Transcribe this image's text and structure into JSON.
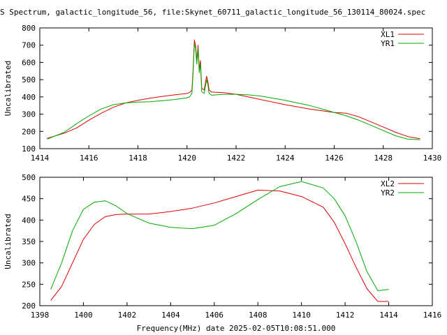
{
  "title": "S Spectrum, galactic_longitude_56, file:Skynet_60711_galactic_longitude_56_130114_80024.spec",
  "footer_label": "Frequency(MHz) date 2025-02-05T10:08:51.000",
  "chart_data": [
    {
      "type": "line",
      "ylabel": "Uncalibrated",
      "xlim": [
        1414,
        1430
      ],
      "ylim": [
        100,
        800
      ],
      "xticks": [
        1414,
        1416,
        1418,
        1420,
        1422,
        1424,
        1426,
        1428,
        1430
      ],
      "yticks": [
        100,
        200,
        300,
        400,
        500,
        600,
        700,
        800
      ],
      "grid": false,
      "legend_position": "top-right",
      "series": [
        {
          "name": "XL1",
          "color": "#dd0000",
          "x": [
            1414.3,
            1415.0,
            1415.5,
            1416.0,
            1416.5,
            1417.0,
            1417.5,
            1418.0,
            1418.5,
            1419.0,
            1419.5,
            1420.0,
            1420.1,
            1420.2,
            1420.25,
            1420.3,
            1420.35,
            1420.4,
            1420.45,
            1420.5,
            1420.55,
            1420.6,
            1420.7,
            1420.8,
            1420.85,
            1420.9,
            1421.0,
            1421.5,
            1422.0,
            1422.5,
            1423.0,
            1424.0,
            1425.0,
            1426.0,
            1426.5,
            1427.0,
            1427.5,
            1428.0,
            1428.5,
            1429.0,
            1429.5
          ],
          "y": [
            160,
            190,
            220,
            265,
            305,
            340,
            365,
            380,
            393,
            403,
            412,
            420,
            425,
            440,
            560,
            730,
            700,
            610,
            700,
            560,
            610,
            450,
            440,
            520,
            490,
            440,
            428,
            425,
            415,
            400,
            385,
            355,
            330,
            310,
            305,
            285,
            255,
            225,
            195,
            170,
            158
          ]
        },
        {
          "name": "YR1",
          "color": "#00aa00",
          "x": [
            1414.3,
            1415.0,
            1415.5,
            1416.0,
            1416.5,
            1417.0,
            1417.5,
            1418.0,
            1418.5,
            1419.0,
            1419.5,
            1420.0,
            1420.1,
            1420.2,
            1420.25,
            1420.3,
            1420.35,
            1420.4,
            1420.45,
            1420.5,
            1420.55,
            1420.6,
            1420.7,
            1420.8,
            1420.85,
            1420.9,
            1421.0,
            1421.5,
            1422.0,
            1422.5,
            1423.0,
            1424.0,
            1425.0,
            1426.0,
            1426.5,
            1427.0,
            1427.5,
            1428.0,
            1428.5,
            1429.0,
            1429.5
          ],
          "y": [
            155,
            195,
            245,
            290,
            330,
            355,
            365,
            370,
            372,
            378,
            385,
            395,
            400,
            420,
            540,
            710,
            680,
            590,
            680,
            540,
            590,
            430,
            420,
            500,
            470,
            420,
            410,
            415,
            415,
            412,
            405,
            380,
            350,
            310,
            290,
            265,
            235,
            205,
            175,
            155,
            152
          ]
        }
      ]
    },
    {
      "type": "line",
      "ylabel": "Uncalibrated",
      "xlim": [
        1398,
        1416
      ],
      "ylim": [
        200,
        500
      ],
      "xticks": [
        1398,
        1400,
        1402,
        1404,
        1406,
        1408,
        1410,
        1412,
        1414,
        1416
      ],
      "yticks": [
        200,
        250,
        300,
        350,
        400,
        450,
        500
      ],
      "grid": false,
      "legend_position": "top-right",
      "series": [
        {
          "name": "XL2",
          "color": "#dd0000",
          "x": [
            1398.5,
            1399.0,
            1399.5,
            1400.0,
            1400.5,
            1401.0,
            1401.5,
            1402.0,
            1403.0,
            1404.0,
            1405.0,
            1406.0,
            1407.0,
            1408.0,
            1409.0,
            1410.0,
            1411.0,
            1411.5,
            1412.0,
            1412.5,
            1413.0,
            1413.5,
            1414.0
          ],
          "y": [
            212,
            245,
            300,
            355,
            390,
            408,
            413,
            414,
            414,
            420,
            428,
            440,
            455,
            470,
            468,
            455,
            430,
            395,
            345,
            290,
            240,
            210,
            210
          ]
        },
        {
          "name": "YR2",
          "color": "#00aa00",
          "x": [
            1398.5,
            1399.0,
            1399.5,
            1400.0,
            1400.5,
            1401.0,
            1401.5,
            1402.0,
            1403.0,
            1404.0,
            1405.0,
            1406.0,
            1407.0,
            1408.0,
            1409.0,
            1410.0,
            1411.0,
            1411.5,
            1412.0,
            1412.5,
            1413.0,
            1413.5,
            1414.0
          ],
          "y": [
            238,
            300,
            375,
            425,
            442,
            445,
            433,
            415,
            393,
            383,
            380,
            388,
            415,
            448,
            478,
            490,
            475,
            450,
            410,
            350,
            280,
            235,
            238
          ]
        }
      ]
    }
  ]
}
